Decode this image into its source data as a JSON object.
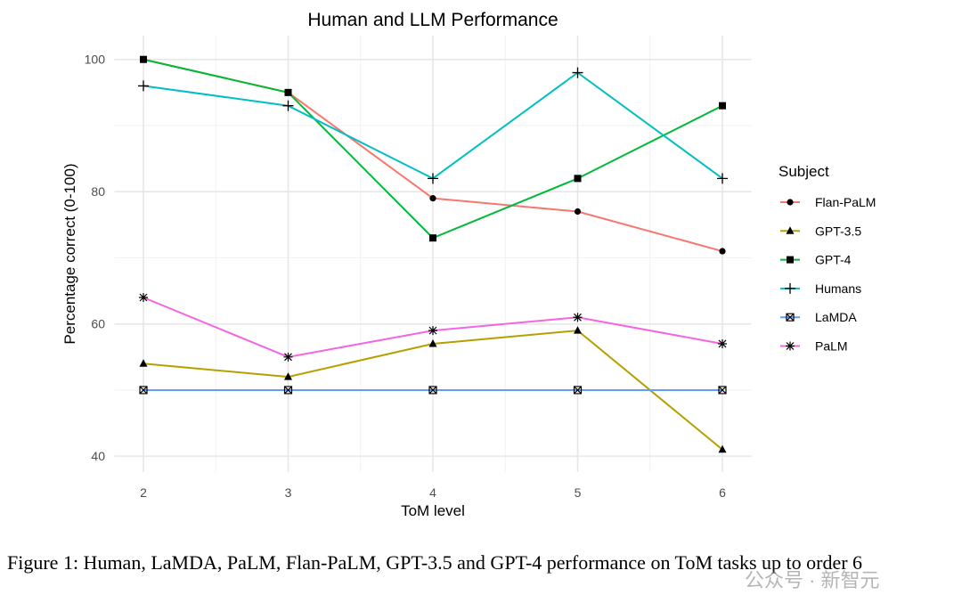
{
  "chart_data": {
    "type": "line",
    "title": "Human and LLM Performance",
    "xlabel": "ToM level",
    "ylabel": "Percentage correct (0-100)",
    "x": [
      2,
      3,
      4,
      5,
      6
    ],
    "xlim": [
      1.8,
      6.2
    ],
    "ylim": [
      37.6,
      103.6
    ],
    "yticks": [
      40,
      60,
      80,
      100
    ],
    "xticks": [
      2,
      3,
      4,
      5,
      6
    ],
    "grid": true,
    "legend": {
      "title": "Subject",
      "placement": "right"
    },
    "series": [
      {
        "name": "Flan-PaLM",
        "values": [
          100,
          95,
          79,
          77,
          71
        ],
        "color": "#F8766D",
        "marker": "circle"
      },
      {
        "name": "GPT-3.5",
        "values": [
          54,
          52,
          57,
          59,
          41
        ],
        "color": "#B79F00",
        "marker": "triangle"
      },
      {
        "name": "GPT-4",
        "values": [
          100,
          95,
          73,
          82,
          93
        ],
        "color": "#00BA38",
        "marker": "square"
      },
      {
        "name": "Humans",
        "values": [
          96,
          93,
          82,
          98,
          82
        ],
        "color": "#00BFC4",
        "marker": "plus"
      },
      {
        "name": "LaMDA",
        "values": [
          50,
          50,
          50,
          50,
          50
        ],
        "color": "#619CFF",
        "marker": "boxed-x"
      },
      {
        "name": "PaLM",
        "values": [
          64,
          55,
          59,
          61,
          57
        ],
        "color": "#F564E3",
        "marker": "asterisk"
      }
    ]
  },
  "caption": "Figure 1: Human, LaMDA, PaLM, Flan-PaLM, GPT-3.5 and GPT-4 performance on ToM tasks up to order 6",
  "watermark": "公众号 · 新智元"
}
